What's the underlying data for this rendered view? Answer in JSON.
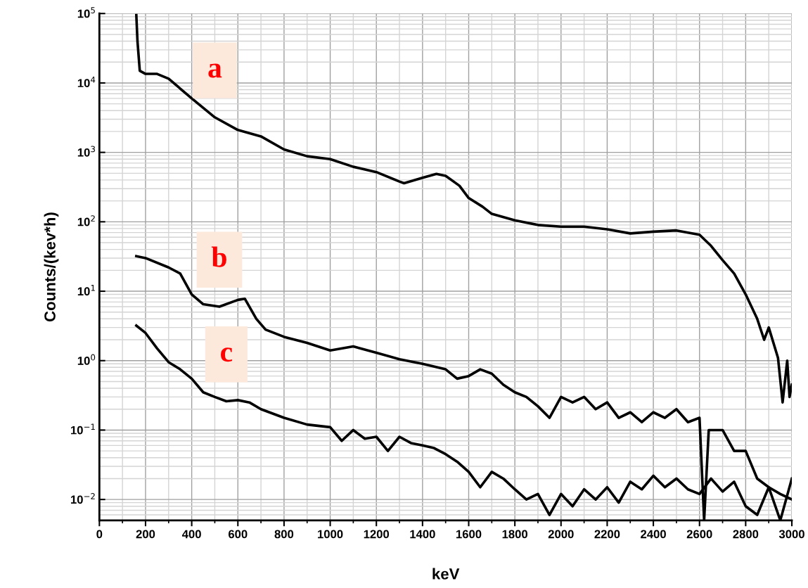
{
  "chart_data": {
    "type": "line",
    "xlabel": "keV",
    "ylabel": "Counts/(kev*h)",
    "log": "y",
    "grid": true,
    "marker": "none",
    "line_style": "solid",
    "xlim": [
      0,
      3000
    ],
    "xticks": [
      0,
      200,
      400,
      600,
      800,
      1000,
      1200,
      1400,
      1600,
      1800,
      2000,
      2200,
      2400,
      2600,
      2800,
      3000
    ],
    "ylim": [
      0.005,
      100000
    ],
    "yticks": [
      {
        "value": 0.01,
        "label": "10$^{−2}$"
      },
      {
        "value": 0.1,
        "label": "10$^{−1}$"
      },
      {
        "value": 1,
        "label": "10$^{0}$"
      },
      {
        "value": 10,
        "label": "10$^{1}$"
      },
      {
        "value": 100,
        "label": "10$^{2}$"
      },
      {
        "value": 1000,
        "label": "10$^{3}$"
      },
      {
        "value": 10000,
        "label": "10$^{4}$"
      },
      {
        "value": 100000,
        "label": "10$^{5}$"
      }
    ],
    "series": [
      {
        "name": "a",
        "color": "#000000",
        "x": [
          160,
          165,
          175,
          200,
          250,
          300,
          400,
          500,
          600,
          700,
          800,
          900,
          1000,
          1100,
          1200,
          1300,
          1320,
          1400,
          1460,
          1500,
          1560,
          1600,
          1660,
          1700,
          1800,
          1900,
          2000,
          2100,
          2200,
          2300,
          2400,
          2500,
          2600,
          2650,
          2700,
          2750,
          2800,
          2850,
          2880,
          2900,
          2940,
          2960,
          2980,
          2990,
          3000
        ],
        "values": [
          95000,
          40000,
          15000,
          13500,
          13500,
          11500,
          6000,
          3200,
          2100,
          1700,
          1100,
          880,
          800,
          620,
          520,
          380,
          360,
          430,
          490,
          460,
          330,
          220,
          165,
          130,
          105,
          90,
          85,
          85,
          78,
          68,
          72,
          75,
          65,
          45,
          28,
          18,
          9,
          4,
          2.0,
          3,
          1.1,
          0.25,
          1.0,
          0.3,
          0.45
        ]
      },
      {
        "name": "b",
        "color": "#000000",
        "x": [
          160,
          200,
          300,
          350,
          400,
          450,
          520,
          600,
          630,
          680,
          720,
          800,
          900,
          1000,
          1100,
          1200,
          1300,
          1400,
          1500,
          1550,
          1600,
          1650,
          1700,
          1750,
          1800,
          1850,
          1900,
          1950,
          2000,
          2050,
          2100,
          2150,
          2200,
          2250,
          2300,
          2350,
          2400,
          2450,
          2500,
          2550,
          2600,
          2620,
          2640,
          2700,
          2750,
          2800,
          2850,
          2900,
          2950,
          3000
        ],
        "values": [
          32,
          30,
          22,
          18,
          9,
          6.5,
          6,
          7.5,
          7.8,
          4,
          2.8,
          2.2,
          1.8,
          1.4,
          1.6,
          1.3,
          1.05,
          0.9,
          0.75,
          0.55,
          0.6,
          0.75,
          0.65,
          0.45,
          0.35,
          0.3,
          0.22,
          0.15,
          0.3,
          0.25,
          0.3,
          0.2,
          0.25,
          0.15,
          0.18,
          0.13,
          0.18,
          0.15,
          0.2,
          0.13,
          0.15,
          0.005,
          0.1,
          0.1,
          0.05,
          0.05,
          0.02,
          0.015,
          0.012,
          0.01
        ]
      },
      {
        "name": "c",
        "color": "#000000",
        "x": [
          160,
          200,
          250,
          300,
          350,
          400,
          450,
          500,
          550,
          600,
          650,
          700,
          800,
          900,
          1000,
          1050,
          1100,
          1150,
          1200,
          1250,
          1300,
          1350,
          1400,
          1450,
          1500,
          1550,
          1600,
          1650,
          1700,
          1750,
          1800,
          1850,
          1900,
          1950,
          2000,
          2050,
          2100,
          2150,
          2200,
          2250,
          2300,
          2350,
          2400,
          2450,
          2500,
          2550,
          2600,
          2650,
          2700,
          2750,
          2800,
          2850,
          2900,
          2950,
          3000
        ],
        "values": [
          3.2,
          2.5,
          1.5,
          0.95,
          0.75,
          0.55,
          0.35,
          0.3,
          0.26,
          0.27,
          0.25,
          0.2,
          0.15,
          0.12,
          0.11,
          0.07,
          0.1,
          0.075,
          0.08,
          0.05,
          0.08,
          0.065,
          0.06,
          0.055,
          0.045,
          0.035,
          0.025,
          0.015,
          0.025,
          0.02,
          0.014,
          0.01,
          0.012,
          0.006,
          0.012,
          0.008,
          0.014,
          0.01,
          0.015,
          0.009,
          0.018,
          0.014,
          0.022,
          0.015,
          0.02,
          0.014,
          0.012,
          0.02,
          0.013,
          0.018,
          0.008,
          0.006,
          0.015,
          0.005,
          0.02
        ]
      }
    ]
  }
}
